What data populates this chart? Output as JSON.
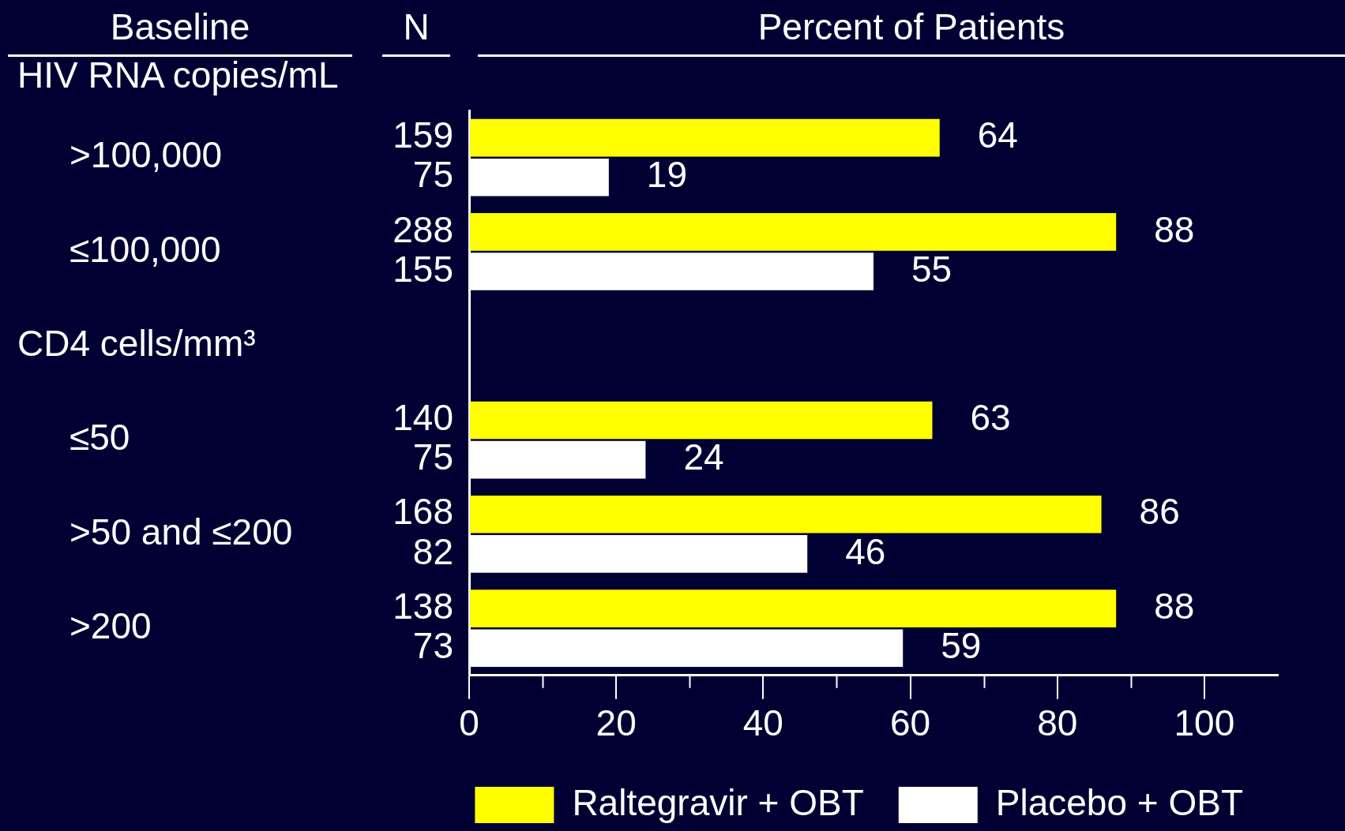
{
  "chart_data": {
    "type": "bar",
    "orientation": "horizontal",
    "xlabel": "Percent of Patients",
    "ylabel": "Baseline",
    "categories": [
      ">100,000",
      "≤100,000",
      null,
      "≤50",
      ">50 and ≤200",
      ">200"
    ],
    "series": [
      {
        "name": "Raltegravir + OBT",
        "color": "#ffff00",
        "values": [
          64,
          88,
          null,
          63,
          86,
          88
        ]
      },
      {
        "name": "Placebo + OBT",
        "color": "#ffffff",
        "values": [
          19,
          55,
          null,
          24,
          46,
          59
        ]
      }
    ],
    "xlim": [
      0,
      110
    ],
    "xticks": [
      0,
      {
        "value": 10,
        "label": null
      },
      20,
      {
        "value": 30,
        "label": null
      },
      40,
      {
        "value": 50,
        "label": null
      },
      60,
      {
        "value": 70,
        "label": null
      },
      80,
      {
        "value": 90,
        "label": null
      },
      100
    ],
    "data_labels": true,
    "grid": false,
    "legend": "bottom right",
    "annotations": [
      "N",
      "HIV RNA copies/mL",
      "CD4 cells/mm³",
      "159",
      "75",
      "288",
      "155",
      "140",
      "75",
      "168",
      "82",
      "138",
      "73"
    ]
  }
}
